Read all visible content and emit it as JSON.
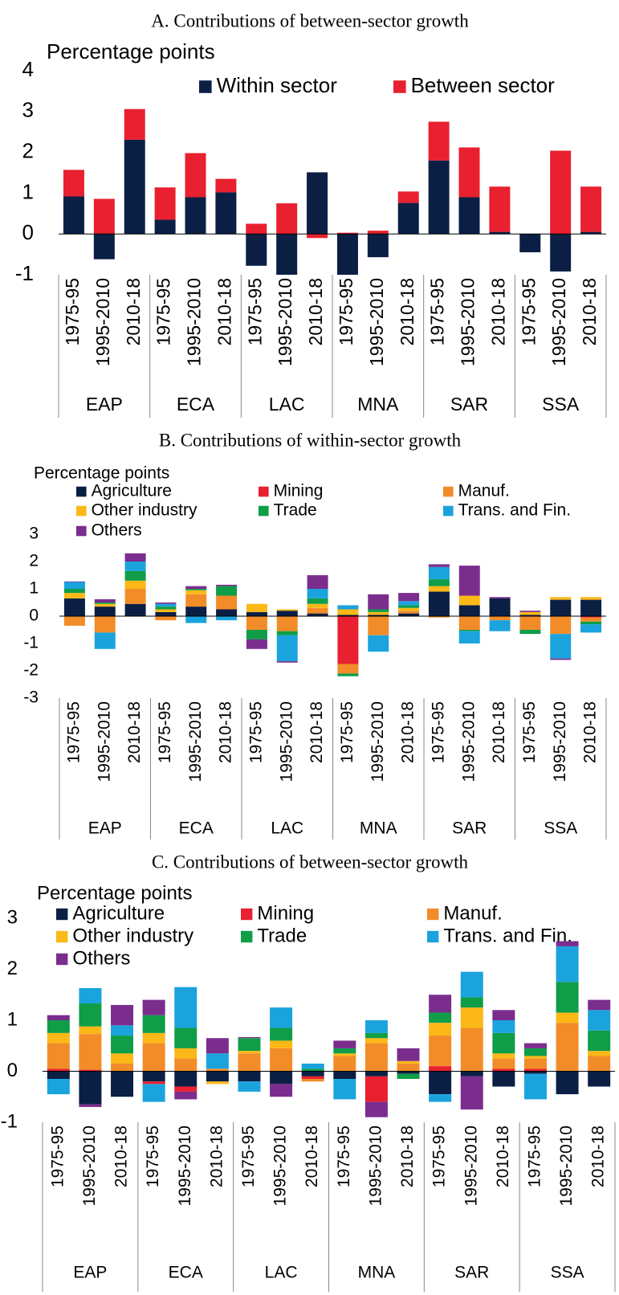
{
  "chart_data": [
    {
      "type": "bar",
      "stacked": true,
      "title": "A. Contributions of between-sector growth",
      "ylabel": "Percentage points",
      "categories": [
        "1975-95",
        "1995-2010",
        "2010-18",
        "1975-95",
        "1995-2010",
        "2010-18",
        "1975-95",
        "1995-2010",
        "2010-18",
        "1975-95",
        "1995-2010",
        "2010-18",
        "1975-95",
        "1995-2010",
        "2010-18",
        "1975-95",
        "1995-2010",
        "2010-18"
      ],
      "groups": [
        "EAP",
        "ECA",
        "LAC",
        "MNA",
        "SAR",
        "SSA"
      ],
      "series": [
        {
          "name": "Within sector",
          "color": "#0b1f45",
          "values": [
            0.92,
            -0.62,
            2.31,
            0.35,
            0.9,
            1.02,
            -0.78,
            -1.0,
            1.51,
            -1.0,
            -0.57,
            0.76,
            1.8,
            0.9,
            0.05,
            -0.45,
            -0.92,
            0.05
          ]
        },
        {
          "name": "Between sector",
          "color": "#e8202f",
          "values": [
            0.65,
            0.86,
            0.75,
            0.79,
            1.08,
            0.33,
            0.25,
            0.75,
            -0.1,
            0.03,
            0.08,
            0.28,
            0.95,
            1.22,
            1.11,
            0,
            2.04,
            1.11
          ]
        }
      ],
      "ylim": [
        -1,
        4
      ],
      "yticks": [
        -1,
        0,
        1,
        2,
        3,
        4
      ]
    },
    {
      "type": "bar",
      "stacked": true,
      "title": "B. Contributions of within-sector growth",
      "ylabel": "Percentage points",
      "categories": [
        "1975-95",
        "1995-2010",
        "2010-18",
        "1975-95",
        "1995-2010",
        "2010-18",
        "1975-95",
        "1995-2010",
        "2010-18",
        "1975-95",
        "1995-2010",
        "2010-18",
        "1975-95",
        "1995-2010",
        "2010-18",
        "1975-95",
        "1995-2010",
        "2010-18"
      ],
      "groups": [
        "EAP",
        "ECA",
        "LAC",
        "MNA",
        "SAR",
        "SSA"
      ],
      "series": [
        {
          "name": "Agriculture",
          "color": "#0b1f45",
          "values": [
            0.65,
            0.35,
            0.45,
            0.15,
            0.35,
            0.25,
            0.15,
            0.2,
            0.1,
            0.05,
            0.05,
            0.1,
            0.9,
            0.4,
            0.65,
            0.05,
            0.6,
            0.6
          ]
        },
        {
          "name": "Mining",
          "color": "#e8202f",
          "values": [
            0,
            0,
            0,
            0,
            0,
            0,
            0,
            0,
            0,
            -1.75,
            0,
            0,
            0,
            0,
            0,
            0,
            0,
            -0.05
          ]
        },
        {
          "name": "Manuf.",
          "color": "#f28c28",
          "values": [
            -0.35,
            -0.6,
            0.55,
            -0.15,
            0.45,
            0.5,
            -0.5,
            -0.55,
            0.2,
            -0.35,
            -0.7,
            0.1,
            -0.05,
            -0.5,
            -0.15,
            -0.5,
            -0.65,
            -0.15
          ]
        },
        {
          "name": "Other industry",
          "color": "#fbb817",
          "values": [
            0.2,
            0.1,
            0.3,
            0.1,
            0.15,
            0,
            0.3,
            0.05,
            0.15,
            0.2,
            0.1,
            0.1,
            0.2,
            0.35,
            0,
            0.1,
            0.1,
            0.1
          ]
        },
        {
          "name": "Trade",
          "color": "#0f9d48",
          "values": [
            0.15,
            0.05,
            0.35,
            0.1,
            0.05,
            0.35,
            -0.35,
            -0.15,
            0.2,
            -0.1,
            0.1,
            0.1,
            0.25,
            -0.05,
            0,
            -0.15,
            0,
            -0.1
          ]
        },
        {
          "name": "Trans. and Fin.",
          "color": "#1ba3dd",
          "values": [
            0.25,
            -0.6,
            0.35,
            0.1,
            -0.25,
            -0.15,
            0,
            -0.95,
            0.35,
            0.15,
            -0.6,
            0.15,
            0.45,
            -0.45,
            -0.4,
            0,
            -0.9,
            -0.3
          ]
        },
        {
          "name": "Others",
          "color": "#7b2d8e",
          "values": [
            0.02,
            0.12,
            0.3,
            0.05,
            0.1,
            0.05,
            -0.35,
            -0.05,
            0.5,
            0,
            0.55,
            0.3,
            0.1,
            1.1,
            0.05,
            0.05,
            -0.05,
            0
          ]
        }
      ],
      "ylim": [
        -3,
        3
      ],
      "yticks": [
        -3,
        -2,
        -1,
        0,
        1,
        2,
        3
      ]
    },
    {
      "type": "bar",
      "stacked": true,
      "title": "C. Contributions of between-sector growth",
      "ylabel": "Percentage points",
      "categories": [
        "1975-95",
        "1995-2010",
        "2010-18",
        "1975-95",
        "1995-2010",
        "2010-18",
        "1975-95",
        "1995-2010",
        "2010-18",
        "1975-95",
        "1995-2010",
        "2010-18",
        "1975-95",
        "1995-2010",
        "2010-18",
        "1975-95",
        "1995-2010",
        "2010-18"
      ],
      "groups": [
        "EAP",
        "ECA",
        "LAC",
        "MNA",
        "SAR",
        "SSA"
      ],
      "series": [
        {
          "name": "Agriculture",
          "color": "#0b1f45",
          "values": [
            -0.15,
            -0.65,
            -0.5,
            -0.2,
            -0.3,
            -0.2,
            -0.2,
            -0.25,
            -0.1,
            -0.15,
            -0.1,
            -0.05,
            -0.45,
            -0.1,
            -0.3,
            -0.05,
            -0.45,
            -0.3
          ]
        },
        {
          "name": "Mining",
          "color": "#e8202f",
          "values": [
            0.05,
            0.03,
            0,
            -0.05,
            -0.1,
            0,
            0,
            0,
            -0.05,
            0,
            -0.5,
            0,
            0.1,
            0,
            0.05,
            0.05,
            0,
            0
          ]
        },
        {
          "name": "Manuf.",
          "color": "#f28c28",
          "values": [
            0.5,
            0.7,
            0.15,
            0.55,
            0.25,
            0.05,
            0.35,
            0.45,
            -0.05,
            0.3,
            0.55,
            0.15,
            0.6,
            0.85,
            0.2,
            0.2,
            0.95,
            0.3
          ]
        },
        {
          "name": "Other industry",
          "color": "#fbb817",
          "values": [
            0.2,
            0.15,
            0.2,
            0.2,
            0.2,
            -0.05,
            0.05,
            0.15,
            0,
            0.05,
            0.1,
            0.05,
            0.25,
            0.4,
            0.1,
            0.05,
            0.2,
            0.1
          ]
        },
        {
          "name": "Trade",
          "color": "#0f9d48",
          "values": [
            0.25,
            0.45,
            0.35,
            0.35,
            0.4,
            0,
            0.25,
            0.25,
            0.05,
            0.1,
            0.1,
            -0.1,
            0.2,
            0.2,
            0.4,
            0.15,
            0.6,
            0.4
          ]
        },
        {
          "name": "Trans. and Fin.",
          "color": "#1ba3dd",
          "values": [
            -0.3,
            0.3,
            0.2,
            -0.35,
            0.8,
            0.3,
            -0.2,
            0.4,
            0.1,
            -0.4,
            0.25,
            0,
            -0.15,
            0.5,
            0.25,
            -0.5,
            0.7,
            0.4
          ]
        },
        {
          "name": "Others",
          "color": "#7b2d8e",
          "values": [
            0.1,
            -0.05,
            0.4,
            0.3,
            -0.15,
            0.3,
            0.02,
            -0.25,
            0,
            0.15,
            -0.3,
            0.25,
            0.35,
            -0.65,
            0.2,
            0.1,
            0.1,
            0.2
          ]
        }
      ],
      "ylim": [
        -1,
        3
      ],
      "yticks": [
        -1,
        0,
        1,
        2,
        3
      ]
    }
  ]
}
